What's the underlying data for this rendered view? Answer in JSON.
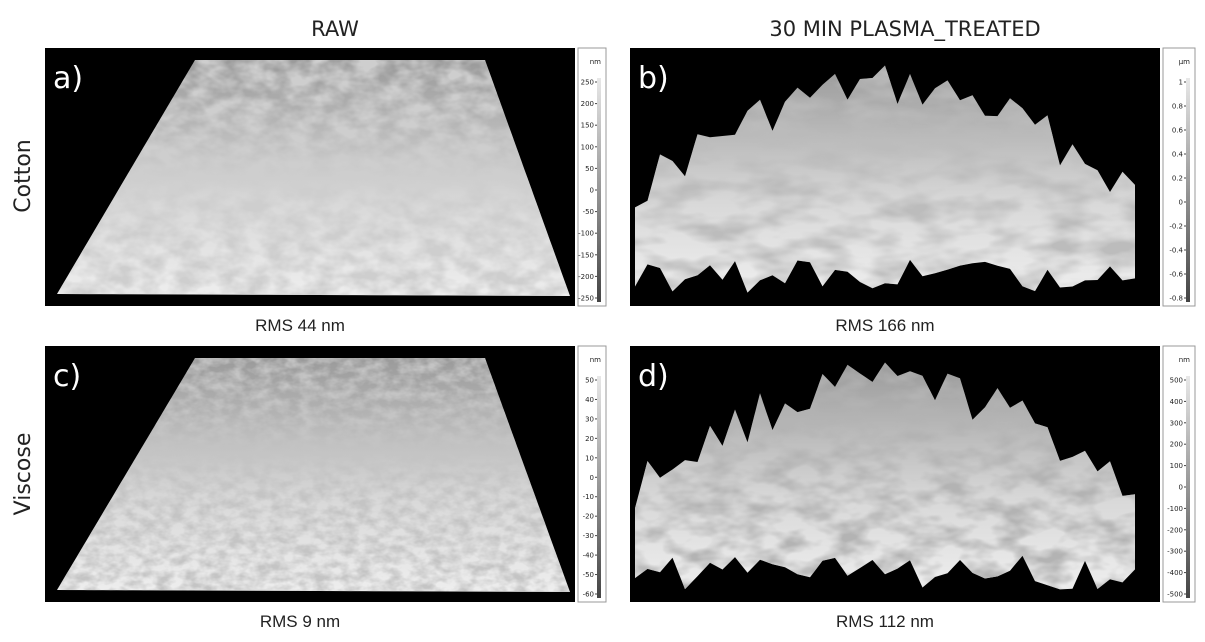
{
  "columns": [
    "RAW",
    "30 MIN PLASMA_TREATED"
  ],
  "rows": [
    "Cotton",
    "Viscose"
  ],
  "panels": [
    {
      "label": "a)",
      "caption": "RMS 44 nm",
      "unit": "nm",
      "scale": [
        250,
        200,
        150,
        100,
        50,
        0,
        -50,
        -100,
        -150,
        -200,
        -250
      ]
    },
    {
      "label": "b)",
      "caption": "RMS 166 nm",
      "unit": "µm",
      "scale": [
        1,
        0.8,
        0.6,
        0.4,
        0.2,
        0,
        -0.2,
        -0.4,
        -0.6,
        -0.8
      ]
    },
    {
      "label": "c)",
      "caption": "RMS 9 nm",
      "unit": "nm",
      "scale": [
        50,
        40,
        30,
        20,
        10,
        0,
        -10,
        -20,
        -30,
        -40,
        -50,
        -60
      ]
    },
    {
      "label": "d)",
      "caption": "RMS 112 nm",
      "unit": "nm",
      "scale": [
        500,
        400,
        300,
        200,
        100,
        0,
        -100,
        -200,
        -300,
        -400,
        -500
      ]
    }
  ]
}
